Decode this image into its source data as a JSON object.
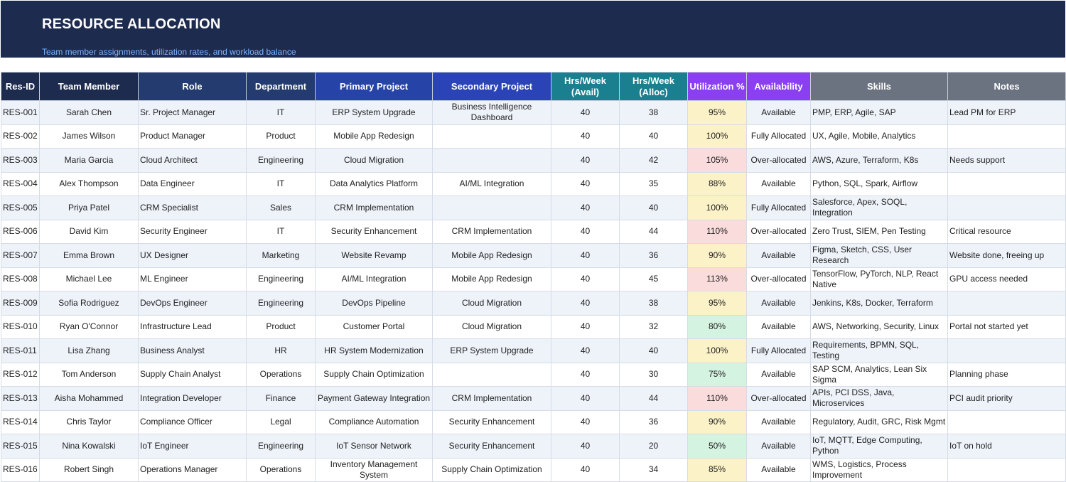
{
  "header": {
    "title": "RESOURCE ALLOCATION",
    "subtitle": "Team member assignments, utilization rates, and workload balance"
  },
  "colors": {
    "banner": "#1d2b4f",
    "header_dark": "#1d2b4f",
    "header_navy": "#233b6e",
    "header_blue": "#2643a8",
    "header_royal": "#2a44b8",
    "header_teal": "#1a7f8e",
    "header_purple": "#8a3ff0",
    "header_gray": "#6b7280",
    "util_yellow": "#fcf2c8",
    "util_red": "#fbdcdc",
    "util_green": "#d5f3e1"
  },
  "columns": [
    "Res-ID",
    "Team Member",
    "Role",
    "Department",
    "Primary Project",
    "Secondary Project",
    "Hrs/Week (Avail)",
    "Hrs/Week (Alloc)",
    "Utilization %",
    "Availability",
    "Skills",
    "Notes"
  ],
  "rows": [
    {
      "id": "RES-001",
      "member": "Sarah Chen",
      "role": "Sr. Project Manager",
      "dept": "IT",
      "primary": "ERP System Upgrade",
      "secondary": "Business Intelligence Dashboard",
      "avail": "40",
      "alloc": "38",
      "util": "95%",
      "util_level": "y",
      "availability": "Available",
      "skills": "PMP, ERP, Agile, SAP",
      "notes": "Lead PM for ERP"
    },
    {
      "id": "RES-002",
      "member": "James Wilson",
      "role": "Product Manager",
      "dept": "Product",
      "primary": "Mobile App Redesign",
      "secondary": "",
      "avail": "40",
      "alloc": "40",
      "util": "100%",
      "util_level": "y",
      "availability": "Fully Allocated",
      "skills": "UX, Agile, Mobile, Analytics",
      "notes": ""
    },
    {
      "id": "RES-003",
      "member": "Maria Garcia",
      "role": "Cloud Architect",
      "dept": "Engineering",
      "primary": "Cloud Migration",
      "secondary": "",
      "avail": "40",
      "alloc": "42",
      "util": "105%",
      "util_level": "r",
      "availability": "Over-allocated",
      "skills": "AWS, Azure, Terraform, K8s",
      "notes": "Needs support"
    },
    {
      "id": "RES-004",
      "member": "Alex Thompson",
      "role": "Data Engineer",
      "dept": "IT",
      "primary": "Data Analytics Platform",
      "secondary": "AI/ML Integration",
      "avail": "40",
      "alloc": "35",
      "util": "88%",
      "util_level": "y",
      "availability": "Available",
      "skills": "Python, SQL, Spark, Airflow",
      "notes": ""
    },
    {
      "id": "RES-005",
      "member": "Priya Patel",
      "role": "CRM Specialist",
      "dept": "Sales",
      "primary": "CRM Implementation",
      "secondary": "",
      "avail": "40",
      "alloc": "40",
      "util": "100%",
      "util_level": "y",
      "availability": "Fully Allocated",
      "skills": "Salesforce, Apex, SOQL, Integration",
      "notes": ""
    },
    {
      "id": "RES-006",
      "member": "David Kim",
      "role": "Security Engineer",
      "dept": "IT",
      "primary": "Security Enhancement",
      "secondary": "CRM Implementation",
      "avail": "40",
      "alloc": "44",
      "util": "110%",
      "util_level": "r",
      "availability": "Over-allocated",
      "skills": "Zero Trust, SIEM, Pen Testing",
      "notes": "Critical resource"
    },
    {
      "id": "RES-007",
      "member": "Emma Brown",
      "role": "UX Designer",
      "dept": "Marketing",
      "primary": "Website Revamp",
      "secondary": "Mobile App Redesign",
      "avail": "40",
      "alloc": "36",
      "util": "90%",
      "util_level": "y",
      "availability": "Available",
      "skills": "Figma, Sketch, CSS, User Research",
      "notes": "Website done, freeing up"
    },
    {
      "id": "RES-008",
      "member": "Michael Lee",
      "role": "ML Engineer",
      "dept": "Engineering",
      "primary": "AI/ML Integration",
      "secondary": "Mobile App Redesign",
      "avail": "40",
      "alloc": "45",
      "util": "113%",
      "util_level": "r",
      "availability": "Over-allocated",
      "skills": "TensorFlow, PyTorch, NLP, React Native",
      "notes": "GPU access needed"
    },
    {
      "id": "RES-009",
      "member": "Sofia Rodriguez",
      "role": "DevOps Engineer",
      "dept": "Engineering",
      "primary": "DevOps Pipeline",
      "secondary": "Cloud Migration",
      "avail": "40",
      "alloc": "38",
      "util": "95%",
      "util_level": "y",
      "availability": "Available",
      "skills": "Jenkins, K8s, Docker, Terraform",
      "notes": ""
    },
    {
      "id": "RES-010",
      "member": "Ryan O'Connor",
      "role": "Infrastructure Lead",
      "dept": "Product",
      "primary": "Customer Portal",
      "secondary": "Cloud Migration",
      "avail": "40",
      "alloc": "32",
      "util": "80%",
      "util_level": "g",
      "availability": "Available",
      "skills": "AWS, Networking, Security, Linux",
      "notes": "Portal not started yet"
    },
    {
      "id": "RES-011",
      "member": "Lisa Zhang",
      "role": "Business Analyst",
      "dept": "HR",
      "primary": "HR System Modernization",
      "secondary": "ERP System Upgrade",
      "avail": "40",
      "alloc": "40",
      "util": "100%",
      "util_level": "y",
      "availability": "Fully Allocated",
      "skills": "Requirements, BPMN, SQL, Testing",
      "notes": ""
    },
    {
      "id": "RES-012",
      "member": "Tom Anderson",
      "role": "Supply Chain Analyst",
      "dept": "Operations",
      "primary": "Supply Chain Optimization",
      "secondary": "",
      "avail": "40",
      "alloc": "30",
      "util": "75%",
      "util_level": "g",
      "availability": "Available",
      "skills": "SAP SCM, Analytics, Lean Six Sigma",
      "notes": "Planning phase"
    },
    {
      "id": "RES-013",
      "member": "Aisha Mohammed",
      "role": "Integration Developer",
      "dept": "Finance",
      "primary": "Payment Gateway Integration",
      "secondary": "CRM Implementation",
      "avail": "40",
      "alloc": "44",
      "util": "110%",
      "util_level": "r",
      "availability": "Over-allocated",
      "skills": "APIs, PCI DSS, Java, Microservices",
      "notes": "PCI audit priority"
    },
    {
      "id": "RES-014",
      "member": "Chris Taylor",
      "role": "Compliance Officer",
      "dept": "Legal",
      "primary": "Compliance Automation",
      "secondary": "Security Enhancement",
      "avail": "40",
      "alloc": "36",
      "util": "90%",
      "util_level": "y",
      "availability": "Available",
      "skills": "Regulatory, Audit, GRC, Risk Mgmt",
      "notes": ""
    },
    {
      "id": "RES-015",
      "member": "Nina Kowalski",
      "role": "IoT Engineer",
      "dept": "Engineering",
      "primary": "IoT Sensor Network",
      "secondary": "Security Enhancement",
      "avail": "40",
      "alloc": "20",
      "util": "50%",
      "util_level": "g",
      "availability": "Available",
      "skills": "IoT, MQTT, Edge Computing, Python",
      "notes": "IoT on hold"
    },
    {
      "id": "RES-016",
      "member": "Robert Singh",
      "role": "Operations Manager",
      "dept": "Operations",
      "primary": "Inventory Management System",
      "secondary": "Supply Chain Optimization",
      "avail": "40",
      "alloc": "34",
      "util": "85%",
      "util_level": "y",
      "availability": "Available",
      "skills": "WMS, Logistics, Process Improvement",
      "notes": ""
    }
  ]
}
